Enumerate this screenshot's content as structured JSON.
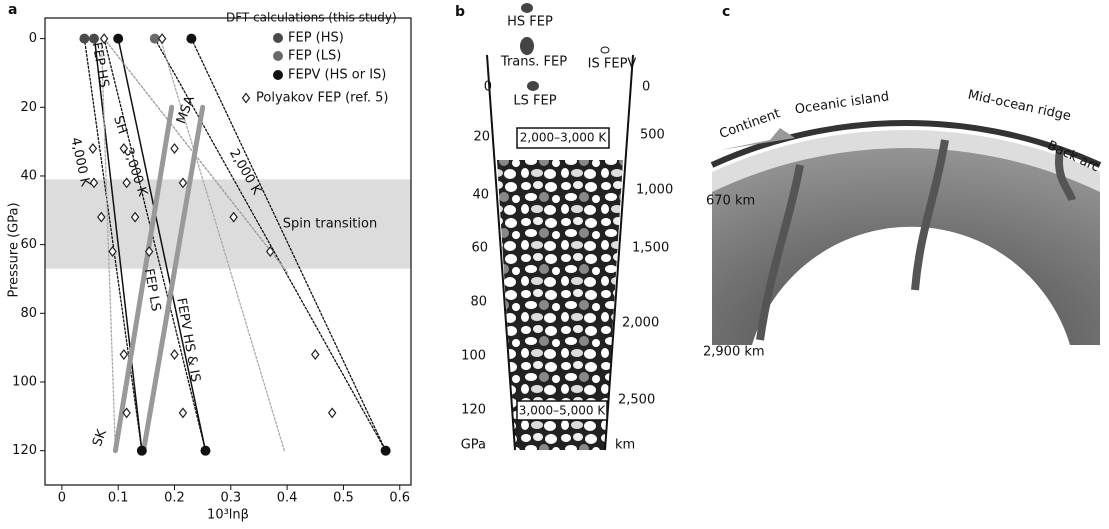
{
  "chart_data": {
    "type": "scatter",
    "panel_label": "a",
    "xlabel": "10³lnβ",
    "ylabel": "Pressure (GPa)",
    "xlim": [
      -0.03,
      0.62
    ],
    "ylim": [
      -6,
      130
    ],
    "y_inverted": true,
    "xticks": [
      0,
      0.1,
      0.2,
      0.3,
      0.4,
      0.5,
      0.6
    ],
    "yticks": [
      0,
      20,
      40,
      60,
      80,
      100,
      120
    ],
    "legend_title": "DFT calculations (this study)",
    "series": [
      {
        "name": "FEP (HS)",
        "color": "#4a4a4a",
        "marker": "circle",
        "x": [
          0.04,
          0.057
        ],
        "values": [
          0,
          0
        ]
      },
      {
        "name": "FEP (LS)",
        "color": "#6a6a6a",
        "marker": "circle",
        "x": [
          0.165
        ],
        "values": [
          0
        ]
      },
      {
        "name": "FEPV (HS or IS)",
        "color": "#111111",
        "marker": "circle",
        "x": [
          0.1,
          0.23,
          0.142,
          0.255,
          0.575
        ],
        "values": [
          0,
          0,
          120,
          120,
          120
        ]
      },
      {
        "name": "Polyakov FEP (ref. 5)",
        "color": "#222222",
        "marker": "diamond",
        "x": [
          0.075,
          0.178,
          0.055,
          0.057,
          0.07,
          0.09,
          0.11,
          0.115,
          0.13,
          0.155,
          0.2,
          0.215,
          0.305,
          0.37,
          0.11,
          0.115,
          0.2,
          0.215,
          0.45,
          0.48
        ],
        "values": [
          0,
          0,
          32,
          42,
          52,
          62,
          32,
          42,
          52,
          62,
          32,
          42,
          52,
          62,
          92,
          109,
          92,
          109,
          92,
          109
        ]
      }
    ],
    "lines": [
      {
        "x": [
          0.1,
          0.255
        ],
        "values": [
          0,
          120
        ],
        "color": "#111",
        "width": 1.5,
        "dash": "none"
      },
      {
        "x": [
          0.058,
          0.142
        ],
        "values": [
          0,
          120
        ],
        "color": "#111",
        "width": 1.5,
        "dash": "none"
      },
      {
        "x": [
          0.04,
          0.142
        ],
        "values": [
          0,
          120
        ],
        "color": "#111",
        "width": 1.3,
        "dash": "2,2"
      },
      {
        "x": [
          0.075,
          0.255
        ],
        "values": [
          0,
          120
        ],
        "color": "#111",
        "width": 1.3,
        "dash": "2,2"
      },
      {
        "x": [
          0.165,
          0.575
        ],
        "values": [
          0,
          120
        ],
        "color": "#111",
        "width": 1.3,
        "dash": "2,2"
      },
      {
        "x": [
          0.23,
          0.575
        ],
        "values": [
          0,
          120
        ],
        "color": "#111",
        "width": 1.3,
        "dash": "2,2"
      },
      {
        "x": [
          0.075,
          0.4
        ],
        "values": [
          0,
          68
        ],
        "color": "#999",
        "width": 1.3,
        "dash": "2,2"
      },
      {
        "x": [
          0.175,
          0.395
        ],
        "values": [
          0,
          120
        ],
        "color": "#aaa",
        "width": 1.3,
        "dash": "2,2"
      },
      {
        "x": [
          0.07,
          0.095
        ],
        "values": [
          0,
          120
        ],
        "color": "#aaa",
        "width": 1.3,
        "dash": "2,2"
      },
      {
        "x": [
          0.095,
          0.195
        ],
        "values": [
          120,
          20
        ],
        "color": "#999",
        "width": 5,
        "dash": "none"
      },
      {
        "x": [
          0.145,
          0.25
        ],
        "values": [
          120,
          20
        ],
        "color": "#999",
        "width": 5,
        "dash": "none"
      }
    ],
    "band": {
      "range": [
        41,
        67
      ],
      "color": "#dcdcdc",
      "label": "Spin transition"
    },
    "annotations": [
      "FEP HS",
      "SH",
      "3,000 K",
      "4,000 K",
      "MSA",
      "2,000 K",
      "FEP LS",
      "FEPV HS & IS",
      "SK"
    ]
  },
  "panel_b": {
    "label": "b",
    "particles": [
      "HS FEP",
      "Trans. FEP",
      "IS FEPV",
      "LS FEP"
    ],
    "pressure_labels": [
      "0",
      "20",
      "40",
      "60",
      "80",
      "100",
      "120",
      "GPa"
    ],
    "depth_labels": [
      "0",
      "500",
      "1,000",
      "1,500",
      "2,000",
      "2,500",
      "km"
    ],
    "temperatures": [
      "2,000–3,000 K",
      "3,000–5,000 K"
    ]
  },
  "panel_c": {
    "label": "c",
    "features": [
      "Continent",
      "Oceanic island",
      "Mid-ocean ridge",
      "Back arc"
    ],
    "depths": [
      "670 km",
      "2,900 km"
    ]
  }
}
